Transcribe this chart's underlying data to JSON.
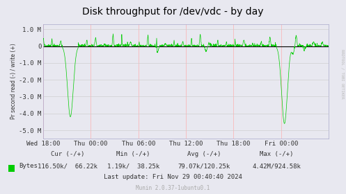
{
  "title": "Disk throughput for /dev/vdc - by day",
  "ylabel": "Pr second read (-) / write (+)",
  "background_color": "#e8e8f0",
  "plot_bg_color": "#e8e8f0",
  "grid_color_h": "#cccccc",
  "grid_color_v": "#ffaaaa",
  "ylim": [
    -5500000,
    1300000
  ],
  "yticks": [
    -5000000,
    -4000000,
    -3000000,
    -2000000,
    -1000000,
    0,
    1000000
  ],
  "ytick_labels": [
    "-5.0 M",
    "-4.0 M",
    "-3.0 M",
    "-2.0 M",
    "-1.0 M",
    "0",
    "1.0 M"
  ],
  "xtick_labels": [
    "Wed 18:00",
    "Thu 00:00",
    "Thu 06:00",
    "Thu 12:00",
    "Thu 18:00",
    "Fri 00:00"
  ],
  "line_color": "#00cc00",
  "zero_line_color": "#000000",
  "legend_color": "#00cc00",
  "watermark": "RRDTOOL / TOBI OETIKER",
  "title_fontsize": 10,
  "axis_fontsize": 6.5,
  "footer_fontsize": 6.5
}
